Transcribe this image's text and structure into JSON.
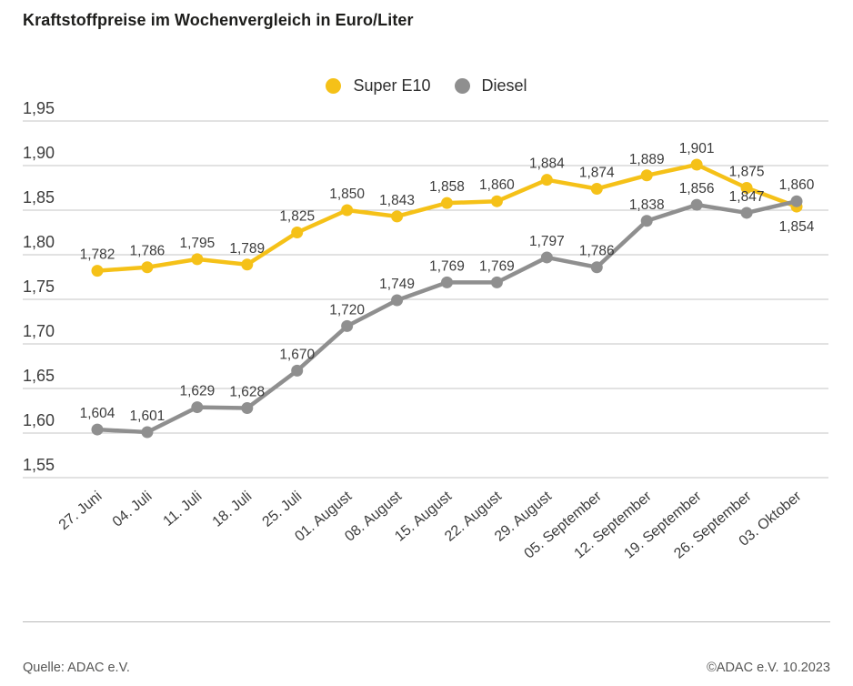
{
  "title": "Kraftstoffpreise im Wochenvergleich in Euro/Liter",
  "legend": [
    {
      "label": "Super E10",
      "color": "#F5C118"
    },
    {
      "label": "Diesel",
      "color": "#8F8F8F"
    }
  ],
  "footer": {
    "source": "Quelle: ADAC e.V.",
    "copyright": "©ADAC e.V. 10.2023"
  },
  "chart_data": {
    "type": "line",
    "title": "Kraftstoffpreise im Wochenvergleich in Euro/Liter",
    "xlabel": "",
    "ylabel": "Euro/Liter",
    "ylim": [
      1.55,
      1.95
    ],
    "ytick_step": 0.05,
    "ytick_labels": [
      "1,95",
      "1,90",
      "1,85",
      "1,80",
      "1,75",
      "1,70",
      "1,65",
      "1,60",
      "1,55"
    ],
    "grid": true,
    "legend_position": "top-center",
    "grid_color": "#C6C6C6",
    "categories": [
      "27. Juni",
      "04. Juli",
      "11. Juli",
      "18. Juli",
      "25. Juli",
      "01. August",
      "08. August",
      "15. August",
      "22. August",
      "29. August",
      "05. September",
      "12. September",
      "19. September",
      "26. September",
      "03. Oktober"
    ],
    "series": [
      {
        "name": "Super E10",
        "color": "#F5C118",
        "values": [
          1.782,
          1.786,
          1.795,
          1.789,
          1.825,
          1.85,
          1.843,
          1.858,
          1.86,
          1.884,
          1.874,
          1.889,
          1.901,
          1.875,
          1.854
        ],
        "labels": [
          "1,782",
          "1,786",
          "1,795",
          "1,789",
          "1,825",
          "1,850",
          "1,843",
          "1,858",
          "1,860",
          "1,884",
          "1,874",
          "1,889",
          "1,901",
          "1,875",
          "1,854"
        ],
        "label_position_overrides": {
          "14": "below"
        }
      },
      {
        "name": "Diesel",
        "color": "#8F8F8F",
        "values": [
          1.604,
          1.601,
          1.629,
          1.628,
          1.67,
          1.72,
          1.749,
          1.769,
          1.769,
          1.797,
          1.786,
          1.838,
          1.856,
          1.847,
          1.86
        ],
        "labels": [
          "1,604",
          "1,601",
          "1,629",
          "1,628",
          "1,670",
          "1,720",
          "1,749",
          "1,769",
          "1,769",
          "1,797",
          "1,786",
          "1,838",
          "1,856",
          "1,847",
          "1,860"
        ],
        "label_position_overrides": {}
      }
    ]
  }
}
